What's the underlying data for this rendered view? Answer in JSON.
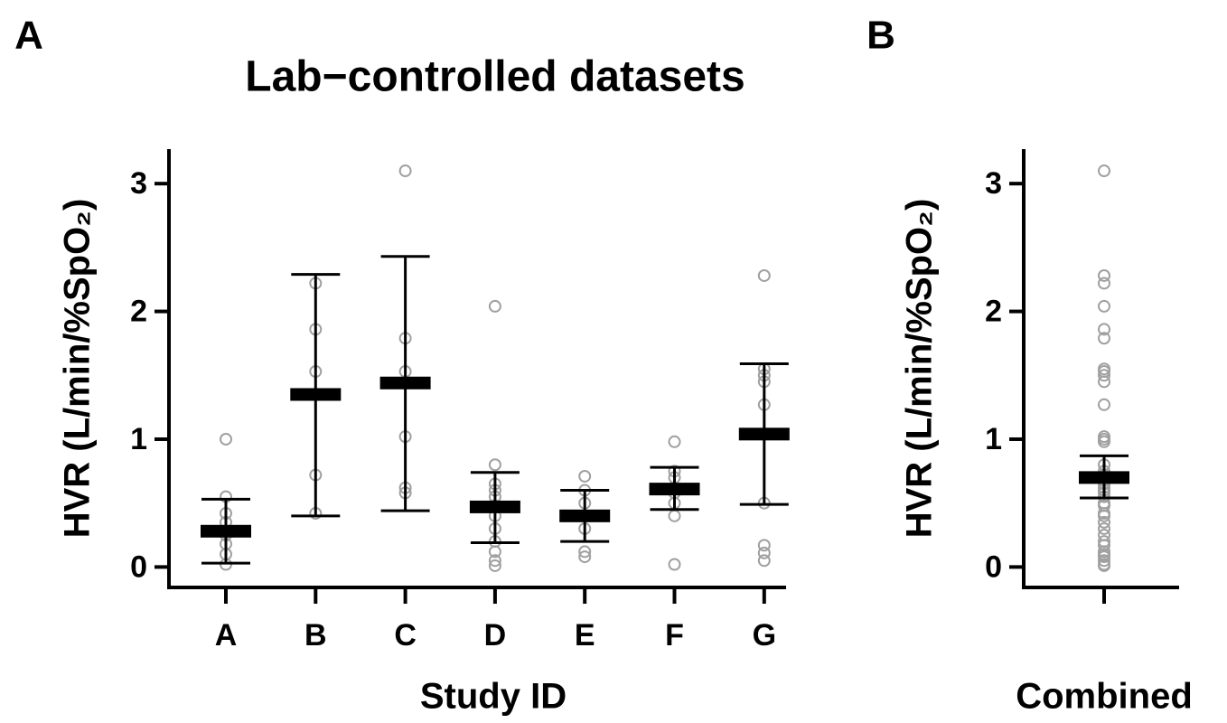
{
  "chart_data": [
    {
      "type": "dotplot",
      "panel_label": "A",
      "title": "Lab−controlled datasets",
      "x_label": "Study ID",
      "y_label": "HVR (L/min/%SpO₂)",
      "categories": [
        "A",
        "B",
        "C",
        "D",
        "E",
        "F",
        "G"
      ],
      "points": [
        [
          1.0,
          0.55,
          0.42,
          0.35,
          0.25,
          0.18,
          0.1,
          0.02
        ],
        [
          2.22,
          1.86,
          1.53,
          0.72,
          0.42
        ],
        [
          3.1,
          1.79,
          1.53,
          1.02,
          0.62,
          0.58
        ],
        [
          2.04,
          0.8,
          0.65,
          0.6,
          0.55,
          0.48,
          0.4,
          0.3,
          0.2,
          0.12,
          0.05,
          0.01
        ],
        [
          0.71,
          0.6,
          0.5,
          0.4,
          0.3,
          0.12,
          0.08
        ],
        [
          0.98,
          0.75,
          0.7,
          0.58,
          0.5,
          0.4,
          0.02
        ],
        [
          2.28,
          1.55,
          1.5,
          1.45,
          1.27,
          0.5,
          0.17,
          0.11,
          0.05
        ]
      ],
      "means": [
        0.28,
        1.35,
        1.44,
        0.47,
        0.4,
        0.61,
        1.04
      ],
      "ci_low": [
        0.03,
        0.4,
        0.44,
        0.19,
        0.2,
        0.45,
        0.49
      ],
      "ci_high": [
        0.53,
        2.29,
        2.43,
        0.74,
        0.6,
        0.78,
        1.59
      ],
      "point_color": "#a0a0a0",
      "mean_color": "#000000",
      "ylim": [
        -0.16,
        3.27
      ],
      "yticks": [
        0,
        1,
        2,
        3
      ]
    },
    {
      "type": "dotplot",
      "panel_label": "B",
      "x_label": "Combined",
      "y_label": "HVR (L/min/%SpO₂)",
      "categories": [
        null
      ],
      "points": [
        [
          3.1,
          2.28,
          2.22,
          2.04,
          1.86,
          1.79,
          1.55,
          1.53,
          1.5,
          1.45,
          1.27,
          1.02,
          1.0,
          0.98,
          0.8,
          0.75,
          0.72,
          0.7,
          0.65,
          0.62,
          0.6,
          0.58,
          0.55,
          0.5,
          0.48,
          0.42,
          0.4,
          0.35,
          0.3,
          0.25,
          0.2,
          0.17,
          0.12,
          0.1,
          0.08,
          0.05,
          0.02,
          0.01
        ]
      ],
      "means": [
        0.7
      ],
      "ci_low": [
        0.54
      ],
      "ci_high": [
        0.87
      ],
      "point_color": "#a0a0a0",
      "mean_color": "#000000",
      "ylim": [
        -0.16,
        3.27
      ],
      "yticks": [
        0,
        1,
        2,
        3
      ]
    }
  ]
}
